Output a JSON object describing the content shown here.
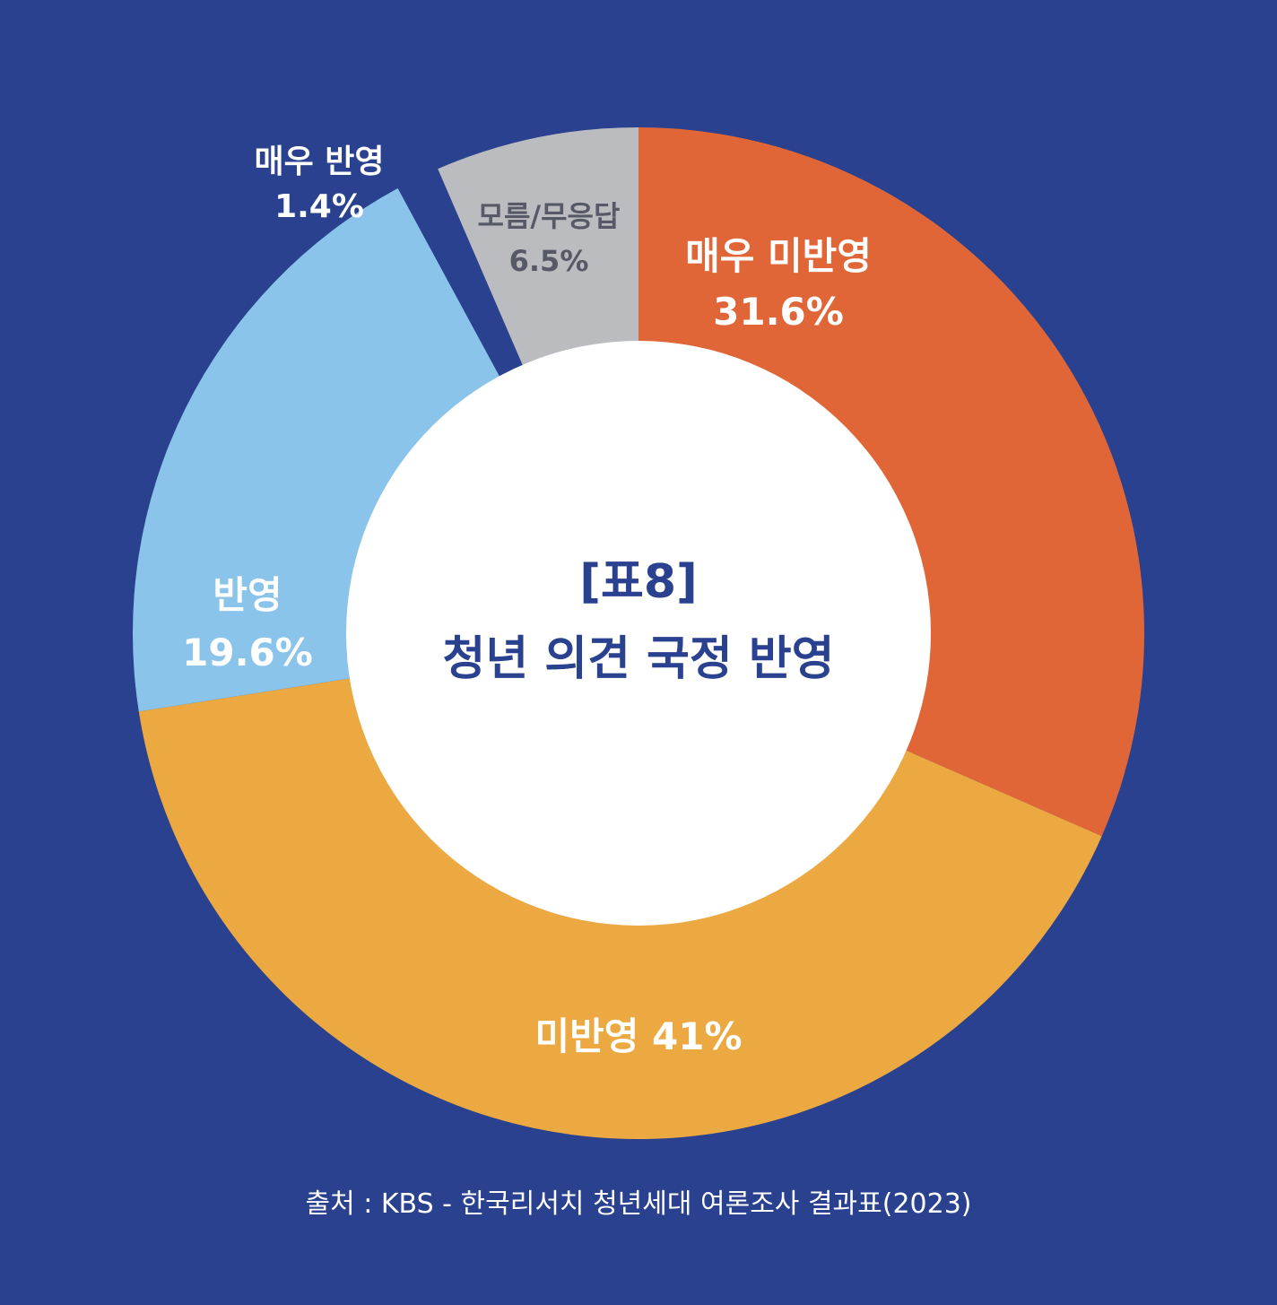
{
  "colors": {
    "background": "#29418e",
    "hole": "#ffffff",
    "title": "#29418e"
  },
  "chart_data": {
    "type": "pie",
    "title_line1": "[표8]",
    "title_line2": "청년 의견 국정 반영",
    "slices": [
      {
        "name": "매우 미반영",
        "value": 31.6,
        "value_label": "31.6%",
        "color": "#e06638",
        "label_color": "#ffffff",
        "label_layout": "two-line"
      },
      {
        "name": "미반영",
        "value": 41.0,
        "value_label": "41%",
        "color": "#eca942",
        "label_color": "#ffffff",
        "label_layout": "one-line"
      },
      {
        "name": "반영",
        "value": 19.6,
        "value_label": "19.6%",
        "color": "#8ac4ea",
        "label_color": "#ffffff",
        "label_layout": "two-line"
      },
      {
        "name": "매우 반영",
        "value": 1.4,
        "value_label": "1.4%",
        "color": "#29418e",
        "label_color": "#ffffff",
        "label_layout": "two-line"
      },
      {
        "name": "모름/무응답",
        "value": 6.5,
        "value_label": "6.5%",
        "color": "#bbbcbf",
        "label_color": "#555a66",
        "label_layout": "two-line"
      }
    ]
  },
  "source": "출처 : KBS - 한국리서치 청년세대 여론조사 결과표(2023)"
}
